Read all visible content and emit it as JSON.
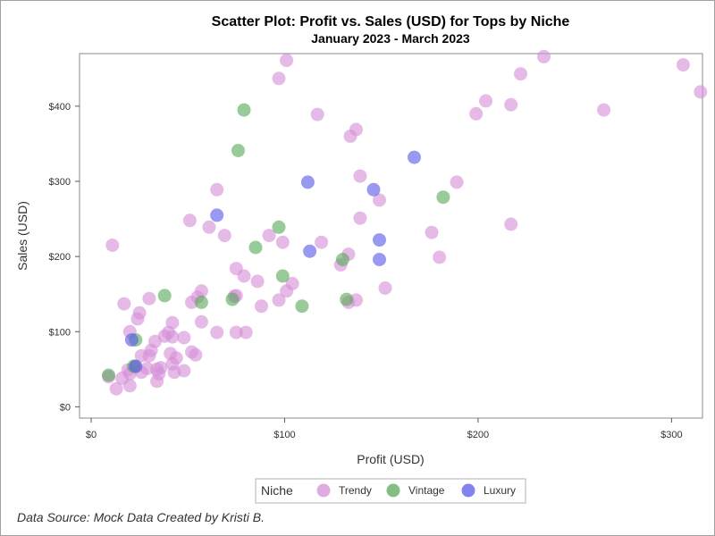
{
  "chart_data": {
    "type": "scatter",
    "title": "Scatter Plot: Profit vs. Sales (USD) for Tops by Niche",
    "subtitle": "January 2023 - March 2023",
    "xlabel": "Profit (USD)",
    "ylabel": "Sales (USD)",
    "xlim": [
      -6,
      316
    ],
    "ylim": [
      -15,
      470
    ],
    "x_ticks": [
      0,
      100,
      200,
      300
    ],
    "x_tick_labels": [
      "$0",
      "$100",
      "$200",
      "$300"
    ],
    "y_ticks": [
      0,
      100,
      200,
      300,
      400
    ],
    "y_tick_labels": [
      "$0",
      "$100",
      "$200",
      "$300",
      "$400"
    ],
    "grid": false,
    "legend": {
      "title": "Niche",
      "placement": "bottom-center",
      "entries": [
        "Trendy",
        "Vintage",
        "Luxury"
      ]
    },
    "footnote": "Data Source: Mock Data Created by Kristi B.",
    "series": [
      {
        "name": "Trendy",
        "color": "#d58fd6",
        "points": [
          [
            101,
            461
          ],
          [
            97,
            437
          ],
          [
            234,
            466
          ],
          [
            306,
            455
          ],
          [
            315,
            419
          ],
          [
            222,
            443
          ],
          [
            204,
            407
          ],
          [
            199,
            390
          ],
          [
            217,
            402
          ],
          [
            265,
            395
          ],
          [
            117,
            389
          ],
          [
            137,
            369
          ],
          [
            134,
            360
          ],
          [
            139,
            307
          ],
          [
            189,
            299
          ],
          [
            149,
            275
          ],
          [
            65,
            289
          ],
          [
            139,
            251
          ],
          [
            51,
            248
          ],
          [
            61,
            239
          ],
          [
            69,
            228
          ],
          [
            92,
            228
          ],
          [
            99,
            219
          ],
          [
            119,
            219
          ],
          [
            11,
            215
          ],
          [
            176,
            232
          ],
          [
            217,
            243
          ],
          [
            180,
            199
          ],
          [
            133,
            203
          ],
          [
            129,
            189
          ],
          [
            75,
            184
          ],
          [
            79,
            174
          ],
          [
            86,
            167
          ],
          [
            104,
            164
          ],
          [
            101,
            154
          ],
          [
            152,
            158
          ],
          [
            57,
            154
          ],
          [
            75,
            148
          ],
          [
            74,
            147
          ],
          [
            55,
            146
          ],
          [
            52,
            139
          ],
          [
            88,
            134
          ],
          [
            97,
            142
          ],
          [
            137,
            142
          ],
          [
            133,
            139
          ],
          [
            17,
            137
          ],
          [
            30,
            144
          ],
          [
            25,
            125
          ],
          [
            24,
            117
          ],
          [
            42,
            112
          ],
          [
            57,
            113
          ],
          [
            20,
            100
          ],
          [
            40,
            99
          ],
          [
            65,
            99
          ],
          [
            75,
            99
          ],
          [
            80,
            99
          ],
          [
            38,
            94
          ],
          [
            42,
            93
          ],
          [
            48,
            92
          ],
          [
            33,
            87
          ],
          [
            31,
            75
          ],
          [
            26,
            68
          ],
          [
            30,
            68
          ],
          [
            41,
            71
          ],
          [
            52,
            73
          ],
          [
            54,
            69
          ],
          [
            44,
            65
          ],
          [
            42,
            57
          ],
          [
            19,
            49
          ],
          [
            23,
            53
          ],
          [
            34,
            50
          ],
          [
            36,
            52
          ],
          [
            26,
            46
          ],
          [
            43,
            46
          ],
          [
            48,
            48
          ],
          [
            20,
            44
          ],
          [
            9,
            40
          ],
          [
            16,
            38
          ],
          [
            35,
            44
          ],
          [
            34,
            34
          ],
          [
            20,
            28
          ],
          [
            13,
            24
          ],
          [
            29,
            51
          ]
        ]
      },
      {
        "name": "Vintage",
        "color": "#5aaa5a",
        "points": [
          [
            79,
            395
          ],
          [
            76,
            341
          ],
          [
            97,
            239
          ],
          [
            85,
            212
          ],
          [
            182,
            279
          ],
          [
            130,
            196
          ],
          [
            99,
            174
          ],
          [
            38,
            148
          ],
          [
            57,
            139
          ],
          [
            73,
            143
          ],
          [
            109,
            134
          ],
          [
            132,
            143
          ],
          [
            23,
            89
          ],
          [
            22,
            54
          ],
          [
            9,
            42
          ]
        ]
      },
      {
        "name": "Luxury",
        "color": "#5a5aea",
        "points": [
          [
            167,
            332
          ],
          [
            112,
            299
          ],
          [
            146,
            289
          ],
          [
            65,
            255
          ],
          [
            149,
            222
          ],
          [
            113,
            207
          ],
          [
            149,
            196
          ],
          [
            21,
            89
          ],
          [
            23,
            54
          ]
        ]
      }
    ]
  }
}
